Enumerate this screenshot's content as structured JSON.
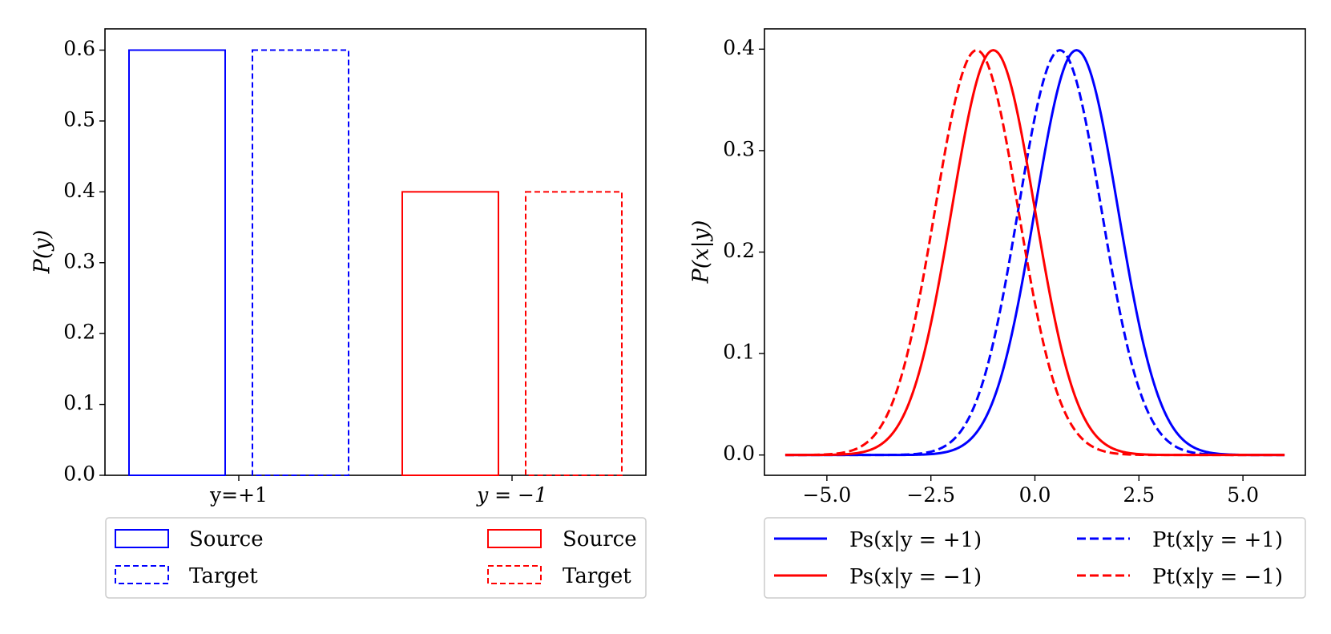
{
  "chart_data": [
    {
      "type": "bar",
      "title": "",
      "xlabel": "",
      "ylabel": "P(y)",
      "categories": [
        "y=+1",
        "y = −1"
      ],
      "ylim": [
        0,
        0.63
      ],
      "yticks": [
        0.0,
        0.1,
        0.2,
        0.3,
        0.4,
        0.5,
        0.6
      ],
      "ytick_labels": [
        "0.0",
        "0.1",
        "0.2",
        "0.3",
        "0.4",
        "0.5",
        "0.6"
      ],
      "grid": false,
      "series": [
        {
          "name": "Source",
          "category": "y=+1",
          "value": 0.6,
          "color": "#0000ff",
          "linestyle": "solid"
        },
        {
          "name": "Target",
          "category": "y=+1",
          "value": 0.6,
          "color": "#0000ff",
          "linestyle": "dashed"
        },
        {
          "name": "Source",
          "category": "y = −1",
          "value": 0.4,
          "color": "#ff0000",
          "linestyle": "solid"
        },
        {
          "name": "Target",
          "category": "y = −1",
          "value": 0.4,
          "color": "#ff0000",
          "linestyle": "dashed"
        }
      ],
      "legend": {
        "placement": "below",
        "columns": 2,
        "entries": [
          {
            "label": "Source",
            "color": "#0000ff",
            "linestyle": "solid"
          },
          {
            "label": "Target",
            "color": "#0000ff",
            "linestyle": "dashed"
          },
          {
            "label": "Source",
            "color": "#ff0000",
            "linestyle": "solid"
          },
          {
            "label": "Target",
            "color": "#ff0000",
            "linestyle": "dashed"
          }
        ]
      }
    },
    {
      "type": "line",
      "title": "",
      "xlabel": "",
      "ylabel": "P(x|y)",
      "xlim": [
        -6.5,
        6.5
      ],
      "ylim": [
        -0.02,
        0.42
      ],
      "xticks": [
        -5.0,
        -2.5,
        0.0,
        2.5,
        5.0
      ],
      "xtick_labels": [
        "−5.0",
        "−2.5",
        "0.0",
        "2.5",
        "5.0"
      ],
      "yticks": [
        0.0,
        0.1,
        0.2,
        0.3,
        0.4
      ],
      "ytick_labels": [
        "0.0",
        "0.1",
        "0.2",
        "0.3",
        "0.4"
      ],
      "x_range": [
        -6,
        6
      ],
      "grid": false,
      "series": [
        {
          "name": "P_s(x|y = +1)",
          "distribution": "normal",
          "mean": 1.0,
          "std": 1.0,
          "color": "#0000ff",
          "linestyle": "solid"
        },
        {
          "name": "P_t(x|y = +1)",
          "distribution": "normal",
          "mean": 0.6,
          "std": 1.0,
          "color": "#0000ff",
          "linestyle": "dashed"
        },
        {
          "name": "P_s(x|y = −1)",
          "distribution": "normal",
          "mean": -1.0,
          "std": 1.0,
          "color": "#ff0000",
          "linestyle": "solid"
        },
        {
          "name": "P_t(x|y = −1)",
          "distribution": "normal",
          "mean": -1.4,
          "std": 1.0,
          "color": "#ff0000",
          "linestyle": "dashed"
        }
      ],
      "legend": {
        "placement": "below",
        "columns": 2,
        "entries": [
          {
            "label": "Ps(x|y = +1)",
            "color": "#0000ff",
            "linestyle": "solid"
          },
          {
            "label": "Ps(x|y = −1)",
            "color": "#ff0000",
            "linestyle": "solid"
          },
          {
            "label": "Pt(x|y = +1)",
            "color": "#0000ff",
            "linestyle": "dashed"
          },
          {
            "label": "Pt(x|y = −1)",
            "color": "#ff0000",
            "linestyle": "dashed"
          }
        ]
      }
    }
  ]
}
